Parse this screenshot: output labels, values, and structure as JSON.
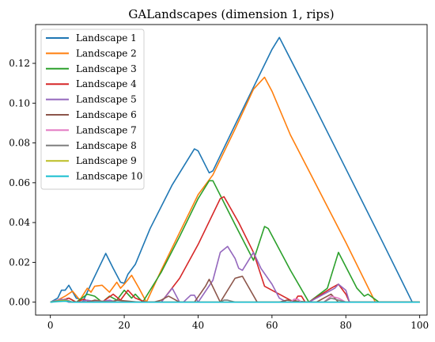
{
  "chart_data": {
    "type": "line",
    "title": "GALandscapes (dimension 1, rips)",
    "xlabel": "",
    "ylabel": "",
    "xlim": [
      -4,
      102
    ],
    "ylim": [
      -0.0065,
      0.1395
    ],
    "xticks": [
      0,
      20,
      40,
      60,
      80,
      100
    ],
    "xtick_labels": [
      "0",
      "20",
      "40",
      "60",
      "80",
      "100"
    ],
    "yticks": [
      0.0,
      0.02,
      0.04,
      0.06,
      0.08,
      0.1,
      0.12
    ],
    "ytick_labels": [
      "0.00",
      "0.02",
      "0.04",
      "0.06",
      "0.08",
      "0.10",
      "0.12"
    ],
    "grid": false,
    "legend_position": "top-left",
    "series": [
      {
        "name": "Landscape 1",
        "color": "#1f77b4",
        "x": [
          0,
          2,
          3,
          4,
          5,
          7,
          9,
          11,
          15,
          17,
          19,
          20,
          21,
          23,
          27,
          33,
          39,
          40,
          43,
          44,
          50,
          55,
          60,
          62,
          70,
          80,
          90,
          98,
          100
        ],
        "y": [
          0.0,
          0.002,
          0.006,
          0.006,
          0.0085,
          0.002,
          0.001,
          0.009,
          0.0245,
          0.017,
          0.01,
          0.0095,
          0.014,
          0.019,
          0.037,
          0.059,
          0.077,
          0.076,
          0.065,
          0.066,
          0.089,
          0.108,
          0.127,
          0.133,
          0.104,
          0.067,
          0.03,
          0.0,
          0.0
        ]
      },
      {
        "name": "Landscape 2",
        "color": "#ff7f0e",
        "x": [
          0,
          2,
          4,
          6,
          8,
          10,
          11,
          12,
          14,
          16,
          18,
          19,
          20,
          22,
          24,
          26,
          30,
          35,
          40,
          44,
          50,
          55,
          58,
          60,
          65,
          70,
          80,
          88,
          100
        ],
        "y": [
          0.0,
          0.001,
          0.003,
          0.0055,
          0.001,
          0.007,
          0.005,
          0.008,
          0.0085,
          0.005,
          0.01,
          0.007,
          0.009,
          0.0135,
          0.007,
          0.0,
          0.016,
          0.035,
          0.054,
          0.064,
          0.087,
          0.107,
          0.113,
          0.106,
          0.084,
          0.066,
          0.03,
          0.0,
          0.0
        ]
      },
      {
        "name": "Landscape 3",
        "color": "#2ca02c",
        "x": [
          0,
          3,
          5,
          7,
          10,
          12,
          14,
          16,
          18,
          20,
          22,
          23,
          25,
          30,
          35,
          40,
          43,
          44,
          50,
          55,
          58,
          59,
          65,
          70,
          75,
          78,
          83,
          85,
          86,
          89,
          100
        ],
        "y": [
          0.0,
          0.001,
          0.002,
          0.0,
          0.004,
          0.003,
          0.0,
          0.003,
          0.001,
          0.006,
          0.002,
          0.004,
          0.0,
          0.015,
          0.033,
          0.052,
          0.061,
          0.061,
          0.039,
          0.021,
          0.038,
          0.037,
          0.016,
          0.0,
          0.007,
          0.025,
          0.007,
          0.003,
          0.004,
          0.0,
          0.0
        ]
      },
      {
        "name": "Landscape 4",
        "color": "#d62728",
        "x": [
          0,
          3,
          5,
          7,
          9,
          11,
          14,
          17,
          19,
          21,
          23,
          26,
          30,
          35,
          40,
          46,
          47,
          51,
          55,
          58,
          66,
          67,
          68,
          69,
          70,
          76,
          78,
          80,
          81,
          100
        ],
        "y": [
          0.0,
          0.001,
          0.002,
          0.0,
          0.0015,
          0.0,
          0.0,
          0.004,
          0.001,
          0.006,
          0.002,
          0.0,
          0.0,
          0.012,
          0.029,
          0.052,
          0.053,
          0.04,
          0.025,
          0.008,
          0.0,
          0.003,
          0.003,
          0.0,
          0.0,
          0.007,
          0.009,
          0.004,
          0.0,
          0.0
        ]
      },
      {
        "name": "Landscape 5",
        "color": "#9467bd",
        "x": [
          0,
          3,
          5,
          8,
          10,
          13,
          16,
          18,
          22,
          30,
          33,
          35,
          36,
          38,
          39,
          40,
          44,
          46,
          48,
          50,
          51,
          52,
          55,
          57,
          60,
          62,
          64,
          66,
          70,
          77,
          78,
          80,
          81,
          100
        ],
        "y": [
          0.0,
          0.0015,
          0.0,
          0.0,
          0.001,
          0.0,
          0.001,
          0.0,
          0.0,
          0.0,
          0.007,
          0.0,
          0.0,
          0.0035,
          0.0035,
          0.0,
          0.011,
          0.025,
          0.028,
          0.022,
          0.017,
          0.016,
          0.025,
          0.017,
          0.009,
          0.002,
          0.0,
          0.0,
          0.0,
          0.007,
          0.009,
          0.006,
          0.0,
          0.0
        ]
      },
      {
        "name": "Landscape 6",
        "color": "#8c564b",
        "x": [
          0,
          3,
          6,
          10,
          12,
          16,
          18,
          24,
          28,
          30,
          32,
          35,
          37,
          39,
          42,
          43,
          46,
          50,
          51,
          52,
          56,
          58,
          62,
          64,
          70,
          72,
          76,
          78,
          80,
          100
        ],
        "y": [
          0.0,
          0.001,
          0.0,
          0.0,
          0.001,
          0.0,
          0.001,
          0.0,
          0.0,
          0.001,
          0.003,
          0.0,
          0.0,
          0.0,
          0.008,
          0.0115,
          0.0,
          0.012,
          0.0125,
          0.013,
          0.0,
          0.0,
          0.0,
          0.001,
          0.0,
          0.0,
          0.004,
          0.0,
          0.0,
          0.0
        ]
      },
      {
        "name": "Landscape 7",
        "color": "#e377c2",
        "x": [
          0,
          2,
          4,
          6,
          10,
          14,
          20,
          50,
          65,
          66,
          67,
          68,
          74,
          76,
          78,
          80,
          100
        ],
        "y": [
          0.0,
          0.001,
          0.0015,
          0.0,
          0.0,
          0.0005,
          0.0,
          0.0,
          0.0,
          0.0015,
          0.0015,
          0.0,
          0.0,
          0.003,
          0.002,
          0.0,
          0.0
        ]
      },
      {
        "name": "Landscape 8",
        "color": "#7f7f7f",
        "x": [
          0,
          2,
          4,
          6,
          10,
          14,
          20,
          46,
          47,
          48,
          50,
          60,
          74,
          76,
          78,
          80,
          100
        ],
        "y": [
          0.0,
          0.0008,
          0.0012,
          0.0,
          0.0,
          0.0004,
          0.0,
          0.0,
          0.001,
          0.001,
          0.0,
          0.0,
          0.0,
          0.002,
          0.001,
          0.0,
          0.0
        ]
      },
      {
        "name": "Landscape 9",
        "color": "#bcbd22",
        "x": [
          0,
          2,
          4,
          6,
          20,
          40,
          60,
          80,
          100
        ],
        "y": [
          0.0,
          0.0005,
          0.0008,
          0.0,
          0.0,
          0.0,
          0.0,
          0.0,
          0.0
        ]
      },
      {
        "name": "Landscape 10",
        "color": "#17becf",
        "x": [
          0,
          2,
          4,
          6,
          20,
          40,
          60,
          80,
          100
        ],
        "y": [
          0.0,
          0.0003,
          0.0005,
          0.0,
          0.0,
          0.0,
          0.0,
          0.0,
          0.0
        ]
      }
    ]
  }
}
